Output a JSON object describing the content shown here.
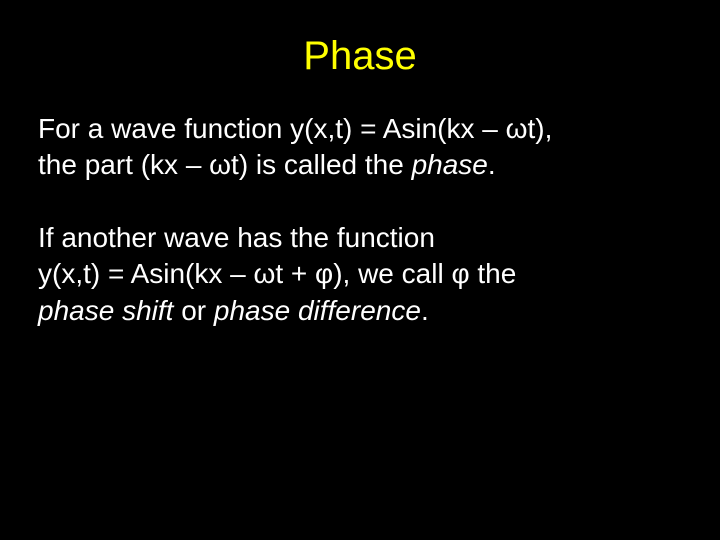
{
  "slide": {
    "title": "Phase",
    "paragraph1_line1": "For a wave function y(x,t) = Asin(kx – ωt),",
    "paragraph1_line2a": "the part (kx – ωt) is called the ",
    "paragraph1_line2b": "phase",
    "paragraph1_line2c": ".",
    "paragraph2_line1": "If another wave has the function",
    "paragraph2_line2a": "y(x,t) = Asin(kx – ωt + φ), we call φ the",
    "paragraph2_line3a": "phase shift",
    "paragraph2_line3b": " or ",
    "paragraph2_line3c": "phase difference",
    "paragraph2_line3d": "."
  },
  "colors": {
    "background": "#000000",
    "title": "#ffff00",
    "body": "#ffffff"
  },
  "typography": {
    "title_fontsize": 40,
    "body_fontsize": 28,
    "font_family": "Arial"
  }
}
